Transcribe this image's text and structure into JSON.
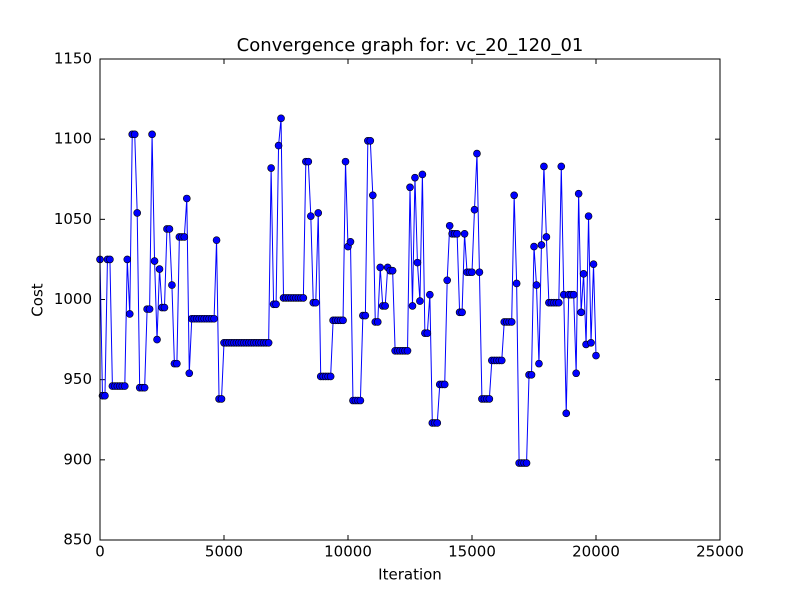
{
  "chart_data": {
    "type": "line",
    "title": "Convergence graph for: vc_20_120_01",
    "x_label": "Iteration",
    "y_label": "Cost",
    "x": [
      0,
      100,
      200,
      300,
      400,
      500,
      600,
      700,
      800,
      900,
      1000,
      1100,
      1200,
      1300,
      1400,
      1500,
      1600,
      1700,
      1800,
      1900,
      2000,
      2100,
      2200,
      2300,
      2400,
      2500,
      2600,
      2700,
      2800,
      2900,
      3000,
      3100,
      3200,
      3300,
      3400,
      3500,
      3600,
      3700,
      3800,
      3900,
      4000,
      4100,
      4200,
      4300,
      4400,
      4500,
      4600,
      4700,
      4800,
      4900,
      5000,
      5100,
      5200,
      5300,
      5400,
      5500,
      5600,
      5700,
      5800,
      5900,
      6000,
      6100,
      6200,
      6300,
      6400,
      6500,
      6600,
      6700,
      6800,
      6900,
      7000,
      7100,
      7200,
      7300,
      7400,
      7500,
      7600,
      7700,
      7800,
      7900,
      8000,
      8100,
      8200,
      8300,
      8400,
      8500,
      8600,
      8700,
      8800,
      8900,
      9000,
      9100,
      9200,
      9300,
      9400,
      9500,
      9600,
      9700,
      9800,
      9900,
      10000,
      10100,
      10200,
      10300,
      10400,
      10500,
      10600,
      10700,
      10800,
      10900,
      11000,
      11100,
      11200,
      11300,
      11400,
      11500,
      11600,
      11700,
      11800,
      11900,
      12000,
      12100,
      12200,
      12300,
      12400,
      12500,
      12600,
      12700,
      12800,
      12900,
      13000,
      13100,
      13200,
      13300,
      13400,
      13500,
      13600,
      13700,
      13800,
      13900,
      14000,
      14100,
      14200,
      14300,
      14400,
      14500,
      14600,
      14700,
      14800,
      14900,
      15000,
      15100,
      15200,
      15300,
      15400,
      15500,
      15600,
      15700,
      15800,
      15900,
      16000,
      16100,
      16200,
      16300,
      16400,
      16500,
      16600,
      16700,
      16800,
      16900,
      17000,
      17100,
      17200,
      17300,
      17400,
      17500,
      17600,
      17700,
      17800,
      17900,
      18000,
      18100,
      18200,
      18300,
      18400,
      18500,
      18600,
      18700,
      18800,
      18900,
      19000,
      19100,
      19200,
      19300,
      19400,
      19500,
      19600,
      19700,
      19800,
      19900,
      20000
    ],
    "series": [
      {
        "color": "#0000ff",
        "values": [
          1025,
          940,
          940,
          1025,
          1025,
          946,
          946,
          946,
          946,
          946,
          946,
          1025,
          991,
          1103,
          1103,
          1054,
          945,
          945,
          945,
          994,
          994,
          1103,
          1024,
          975,
          1019,
          995,
          995,
          1044,
          1044,
          1009,
          960,
          960,
          1039,
          1039,
          1039,
          1063,
          954,
          988,
          988,
          988,
          988,
          988,
          988,
          988,
          988,
          988,
          988,
          1037,
          938,
          938,
          973,
          973,
          973,
          973,
          973,
          973,
          973,
          973,
          973,
          973,
          973,
          973,
          973,
          973,
          973,
          973,
          973,
          973,
          973,
          1082,
          997,
          997,
          1096,
          1113,
          1001,
          1001,
          1001,
          1001,
          1001,
          1001,
          1001,
          1001,
          1001,
          1086,
          1086,
          1052,
          998,
          998,
          1054,
          952,
          952,
          952,
          952,
          952,
          987,
          987,
          987,
          987,
          987,
          1086,
          1033,
          1036,
          937,
          937,
          937,
          937,
          990,
          990,
          1099,
          1099,
          1065,
          986,
          986,
          1020,
          996,
          996,
          1020,
          1018,
          1018,
          968,
          968,
          968,
          968,
          968,
          968,
          1070,
          996,
          1076,
          1023,
          999,
          1078,
          979,
          979,
          1003,
          923,
          923,
          923,
          947,
          947,
          947,
          1012,
          1046,
          1041,
          1041,
          1041,
          992,
          992,
          1041,
          1017,
          1017,
          1017,
          1056,
          1091,
          1017,
          938,
          938,
          938,
          938,
          962,
          962,
          962,
          962,
          962,
          986,
          986,
          986,
          986,
          1065,
          1010,
          898,
          898,
          898,
          898,
          953,
          953,
          1033,
          1009,
          960,
          1034,
          1083,
          1039,
          998,
          998,
          998,
          998,
          998,
          1083,
          1003,
          929,
          1003,
          1003,
          1003,
          954,
          1066,
          992,
          1016,
          972,
          1052,
          973,
          1022,
          965
        ]
      }
    ],
    "xlim": [
      0,
      25000
    ],
    "xticks": [
      0,
      5000,
      10000,
      15000,
      20000,
      25000
    ],
    "ylim": [
      850,
      1150
    ],
    "yticks": [
      850,
      900,
      950,
      1000,
      1050,
      1100,
      1150
    ]
  }
}
